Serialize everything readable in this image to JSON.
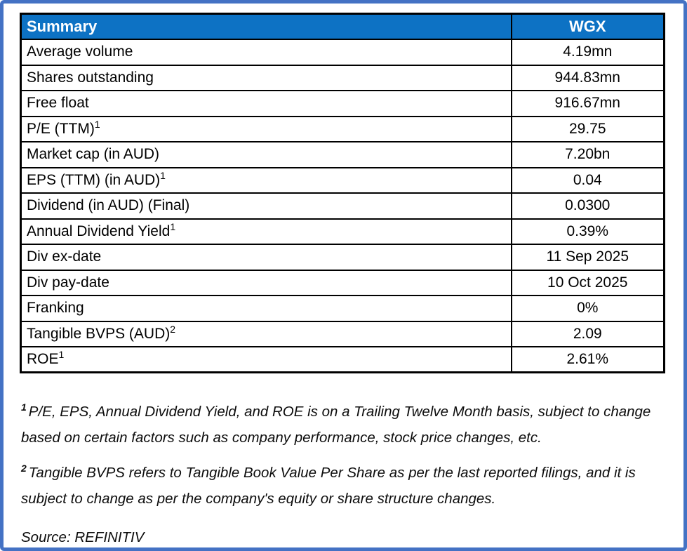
{
  "table": {
    "header": {
      "label": "Summary",
      "value": "WGX"
    },
    "rows": [
      {
        "label": "Average volume",
        "sup": "",
        "value": "4.19mn"
      },
      {
        "label": "Shares outstanding",
        "sup": "",
        "value": "944.83mn"
      },
      {
        "label": "Free float",
        "sup": "",
        "value": "916.67mn"
      },
      {
        "label": "P/E (TTM)",
        "sup": "1",
        "value": "29.75"
      },
      {
        "label": "Market cap (in AUD)",
        "sup": "",
        "value": "7.20bn"
      },
      {
        "label": "EPS (TTM) (in AUD)",
        "sup": "1",
        "value": "0.04"
      },
      {
        "label": "Dividend (in AUD) (Final)",
        "sup": "",
        "value": "0.0300"
      },
      {
        "label": "Annual Dividend Yield",
        "sup": "1",
        "value": "0.39%"
      },
      {
        "label": "Div ex-date",
        "sup": "",
        "value": "11 Sep 2025"
      },
      {
        "label": "Div pay-date",
        "sup": "",
        "value": "10 Oct 2025"
      },
      {
        "label": "Franking",
        "sup": "",
        "value": "0%"
      },
      {
        "label": "Tangible BVPS (AUD)",
        "sup": "2",
        "value": "2.09"
      },
      {
        "label": "ROE",
        "sup": "1",
        "value": "2.61%"
      }
    ]
  },
  "footnotes": [
    {
      "sup": "1",
      "text": "P/E, EPS, Annual Dividend Yield, and ROE is on a Trailing Twelve Month basis, subject to change based on certain factors such as company performance, stock price changes, etc."
    },
    {
      "sup": "2",
      "text": "Tangible BVPS refers to Tangible Book Value Per Share as per the last reported filings, and it is subject to change as per the company's equity or share structure changes."
    }
  ],
  "source": "Source: REFINITIV",
  "colors": {
    "header_bg": "#0D72C4",
    "frame": "#4472C4",
    "table_border": "#000000"
  }
}
